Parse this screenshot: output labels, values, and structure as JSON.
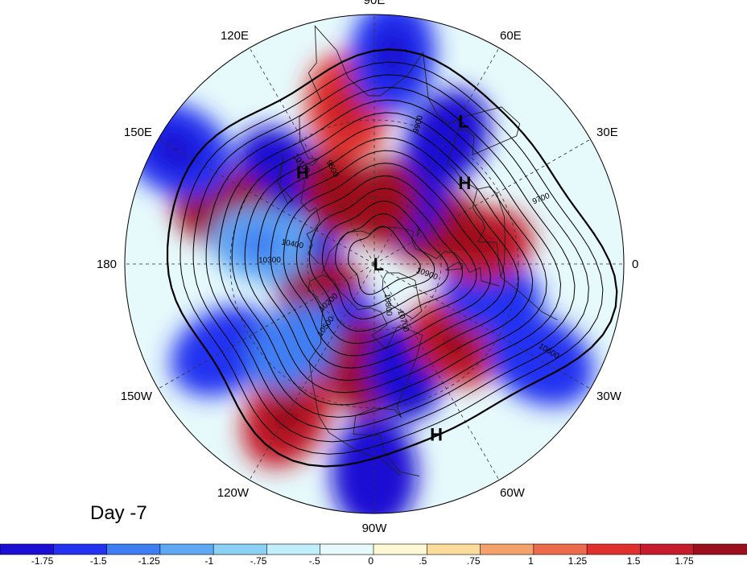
{
  "figure": {
    "title": "Day -7",
    "projection": "north-polar-stereographic",
    "colors": {
      "border": "#000000",
      "graticule": "#333333",
      "contour": "#000000",
      "coastline": "#222222"
    },
    "longitude_labels": [
      {
        "lon": 90,
        "text": "90E"
      },
      {
        "lon": 60,
        "text": "60E"
      },
      {
        "lon": 30,
        "text": "30E"
      },
      {
        "lon": 0,
        "text": "0"
      },
      {
        "lon": -30,
        "text": "30W"
      },
      {
        "lon": -60,
        "text": "60W"
      },
      {
        "lon": -90,
        "text": "90W"
      },
      {
        "lon": -120,
        "text": "120W"
      },
      {
        "lon": -150,
        "text": "150W"
      },
      {
        "lon": 180,
        "text": "180"
      },
      {
        "lon": 150,
        "text": "150E"
      },
      {
        "lon": 120,
        "text": "120E"
      }
    ],
    "pressure_centers": [
      {
        "type": "L",
        "text": "L",
        "lon": 0,
        "lat": 88
      },
      {
        "type": "L",
        "text": "L",
        "lon": 58,
        "lat": 22
      },
      {
        "type": "H",
        "text": "H",
        "lon": 128,
        "lat": 40
      },
      {
        "type": "H",
        "text": "H",
        "lon": 42,
        "lat": 38
      },
      {
        "type": "H",
        "text": "H",
        "lon": -70,
        "lat": 18
      }
    ],
    "contour_labels": [
      "10900",
      "10700",
      "10500",
      "10300",
      "10100",
      "9900",
      "9700",
      "10600",
      "10800",
      "10200",
      "10400",
      "9500"
    ]
  },
  "colorbar": {
    "tick_labels": [
      "-1.75",
      "-1.5",
      "-1.25",
      "-1",
      "-.75",
      "-.5",
      "0",
      ".5",
      ".75",
      "1",
      "1.25",
      "1.5",
      "1.75"
    ],
    "colors": [
      "#1b0fd3",
      "#2432f0",
      "#3f7ef2",
      "#5ea8f4",
      "#8bd0f5",
      "#c0eefb",
      "#e6f9fb",
      "#fff8d4",
      "#fbdc9c",
      "#f5a16c",
      "#ee6a4c",
      "#e0302e",
      "#c51b2b",
      "#9c0f1e"
    ]
  },
  "anomaly_blobs": [
    {
      "lon": 135,
      "lat": 35,
      "value": -1.8
    },
    {
      "lon": 118,
      "lat": 55,
      "value": 1.8
    },
    {
      "lon": 160,
      "lat": 25,
      "value": 1.8
    },
    {
      "lon": 175,
      "lat": 55,
      "value": -1.8
    },
    {
      "lon": -150,
      "lat": 62,
      "value": 1.8
    },
    {
      "lon": -110,
      "lat": 55,
      "value": -1.7
    },
    {
      "lon": -95,
      "lat": 45,
      "value": 1.8
    },
    {
      "lon": -75,
      "lat": 42,
      "value": -1.8
    },
    {
      "lon": -45,
      "lat": 42,
      "value": 1.7
    },
    {
      "lon": -15,
      "lat": 38,
      "value": -1.5
    },
    {
      "lon": 10,
      "lat": 42,
      "value": 1.7
    },
    {
      "lon": 30,
      "lat": 58,
      "value": 1.8
    },
    {
      "lon": 60,
      "lat": 58,
      "value": -1.8
    },
    {
      "lon": 80,
      "lat": 62,
      "value": 1.8
    },
    {
      "lon": 60,
      "lat": 30,
      "value": -1.8
    },
    {
      "lon": -120,
      "lat": 20,
      "value": 1.7
    },
    {
      "lon": -90,
      "lat": 10,
      "value": -1.8
    },
    {
      "lon": -150,
      "lat": 20,
      "value": -1.5
    },
    {
      "lon": 150,
      "lat": 5,
      "value": -1.7
    },
    {
      "lon": 100,
      "lat": 25,
      "value": 1.5
    },
    {
      "lon": 85,
      "lat": 10,
      "value": -1.6
    },
    {
      "lon": -30,
      "lat": 15,
      "value": -1.5
    },
    {
      "lon": -135,
      "lat": 40,
      "value": -1.3
    },
    {
      "lon": 170,
      "lat": 40,
      "value": -1.2
    }
  ]
}
